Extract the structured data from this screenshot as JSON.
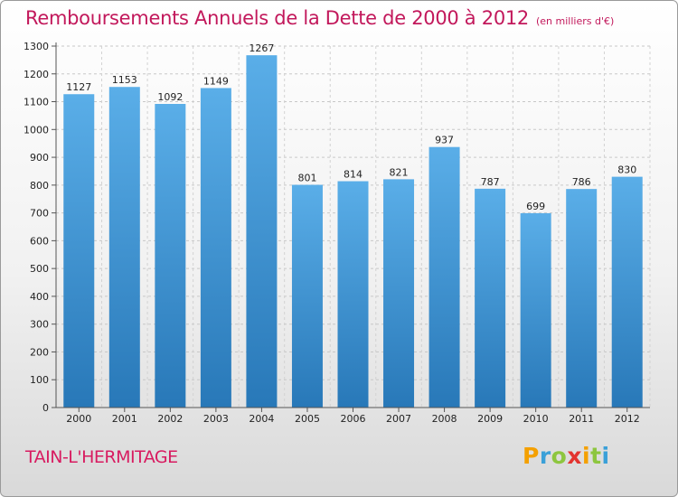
{
  "chart_data": {
    "type": "bar",
    "title": "Remboursements Annuels de la Dette de 2000 à 2012",
    "subtitle": "(en milliers d'€)",
    "categories": [
      "2000",
      "2001",
      "2002",
      "2003",
      "2004",
      "2005",
      "2006",
      "2007",
      "2008",
      "2009",
      "2010",
      "2011",
      "2012"
    ],
    "values": [
      1127,
      1153,
      1092,
      1149,
      1267,
      801,
      814,
      821,
      937,
      787,
      699,
      786,
      830
    ],
    "ylim": [
      0,
      1300
    ],
    "yticks": [
      0,
      100,
      200,
      300,
      400,
      500,
      600,
      700,
      800,
      900,
      1000,
      1100,
      1200,
      1300
    ],
    "grid": true,
    "xlabel": "",
    "ylabel": ""
  },
  "location": "TAIN-L'HERMITAGE",
  "brand": {
    "letters": [
      "P",
      "r",
      "o",
      "x",
      "i",
      "t",
      "i"
    ],
    "colors": [
      "#f4a000",
      "#3aa0d8",
      "#8dc63f",
      "#e3342f",
      "#f4a000",
      "#8dc63f",
      "#3aa0d8"
    ]
  },
  "colors": {
    "bar_top": "#5aaee8",
    "bar_bottom": "#2878b8",
    "title": "#c2185b"
  }
}
